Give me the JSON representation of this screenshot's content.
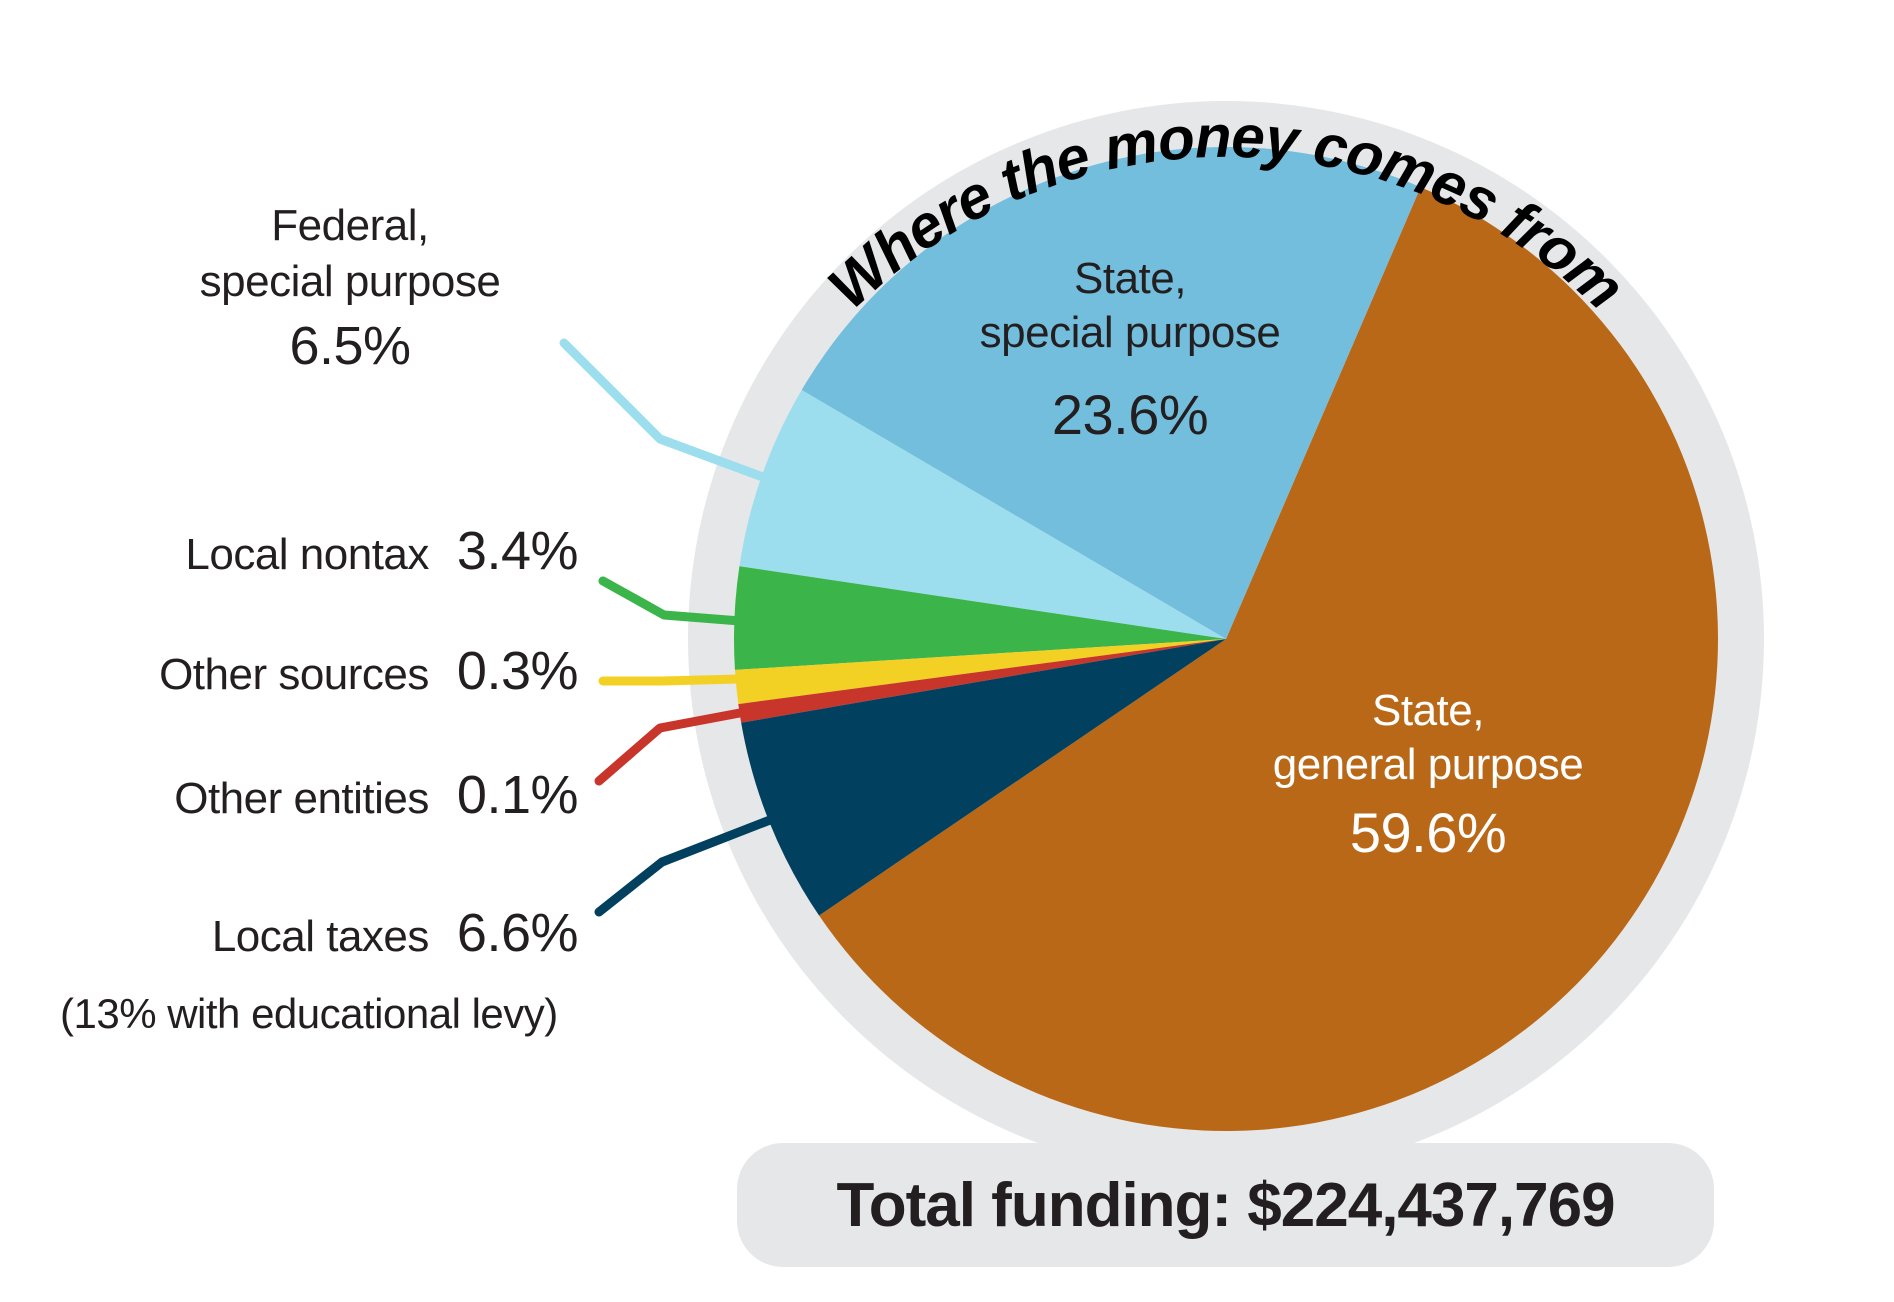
{
  "chart_data": {
    "type": "pie",
    "title": "Where the money comes from",
    "total_label": "Total funding: $224,437,769",
    "total_value": 224437769,
    "categories": [
      "State, general purpose",
      "State, special purpose",
      "Federal, special purpose",
      "Local nontax",
      "Other sources",
      "Other entities",
      "Local taxes"
    ],
    "values": [
      59.6,
      23.6,
      6.5,
      3.4,
      0.3,
      0.1,
      6.6
    ],
    "unit": "%",
    "colors": [
      "#b96818",
      "#73bedd",
      "#9cdeed",
      "#3bb44a",
      "#f3d124",
      "#c8352a",
      "#02405f"
    ],
    "annotations": [
      "Local taxes: 13% with educational levy"
    ]
  },
  "title": "Where the money comes from",
  "slices": {
    "state_general": {
      "name_line1": "State,",
      "name_line2": "general purpose",
      "pct": "59.6%",
      "color": "#b96818"
    },
    "state_special": {
      "name_line1": "State,",
      "name_line2": "special purpose",
      "pct": "23.6%",
      "color": "#73bedd"
    },
    "federal_special": {
      "name_line1": "Federal,",
      "name_line2": "special purpose",
      "pct": "6.5%",
      "color": "#9cdeed"
    },
    "local_nontax": {
      "name": "Local nontax",
      "pct": "3.4%",
      "color": "#3bb44a"
    },
    "other_sources": {
      "name": "Other sources",
      "pct": "0.3%",
      "color": "#f3d124"
    },
    "other_entities": {
      "name": "Other entities",
      "pct": "0.1%",
      "color": "#c8352a"
    },
    "local_taxes": {
      "name": "Local taxes",
      "pct": "6.6%",
      "note": "(13% with educational levy)",
      "color": "#02405f"
    }
  },
  "total": {
    "label": "Total funding: $224,437,769"
  },
  "ring_color": "#e6e7e8"
}
